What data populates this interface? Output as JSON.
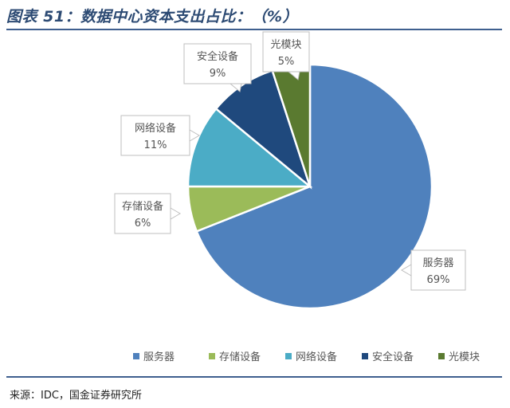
{
  "header": {
    "title": "图表 51：数据中心资本支出占比：（%）"
  },
  "footer": {
    "source": "来源：IDC，国金证券研究所"
  },
  "chart_data": {
    "type": "pie",
    "title": "图表 51：数据中心资本支出占比：（%）",
    "categories": [
      "服务器",
      "存储设备",
      "网络设备",
      "安全设备",
      "光模块"
    ],
    "values": [
      69,
      6,
      11,
      9,
      5
    ],
    "labels": [
      "69%",
      "6%",
      "11%",
      "9%",
      "5%"
    ],
    "colors": [
      "#4f81bd",
      "#9bbb59",
      "#4bacc6",
      "#1f497d",
      "#5a7a30"
    ],
    "legend": "bottom"
  }
}
